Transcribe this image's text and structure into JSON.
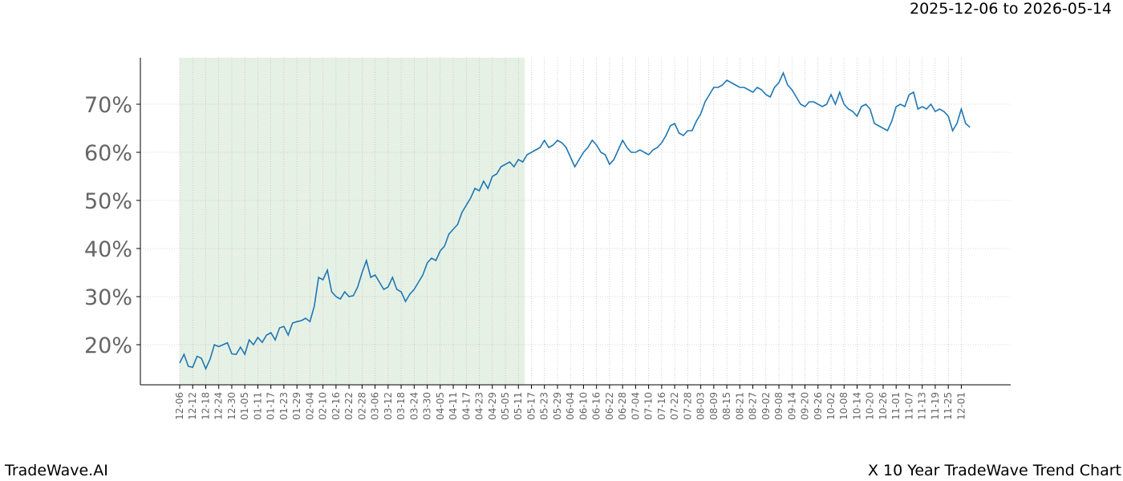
{
  "header": {
    "date_range": "2025-12-06 to 2026-05-14"
  },
  "footer": {
    "brand": "TradeWave.AI",
    "title": "X 10 Year TradeWave Trend Chart"
  },
  "colors": {
    "line": "#1f77b4",
    "highlight": "#e6f1e6",
    "axis": "#000000",
    "tick_text": "#666666",
    "grid": "#b0b0b0"
  },
  "chart_data": {
    "type": "line",
    "title": "",
    "xlabel": "",
    "ylabel": "",
    "y_unit": "%",
    "ylim": [
      12,
      80
    ],
    "xlim": [
      "2025-12-06",
      "2026-12-06"
    ],
    "grid": true,
    "highlight_range": [
      "2025-12-06",
      "2026-05-14"
    ],
    "x_tick_labels": [
      "12-06",
      "12-12",
      "12-18",
      "12-24",
      "12-30",
      "01-05",
      "01-11",
      "01-17",
      "01-23",
      "01-29",
      "02-04",
      "02-10",
      "02-16",
      "02-22",
      "02-28",
      "03-06",
      "03-12",
      "03-18",
      "03-24",
      "03-30",
      "04-05",
      "04-11",
      "04-17",
      "04-23",
      "04-29",
      "05-05",
      "05-11",
      "05-17",
      "05-23",
      "05-29",
      "06-04",
      "06-10",
      "06-16",
      "06-22",
      "06-28",
      "07-04",
      "07-10",
      "07-16",
      "07-22",
      "07-28",
      "08-03",
      "08-09",
      "08-15",
      "08-21",
      "08-27",
      "09-02",
      "09-08",
      "09-14",
      "09-20",
      "09-26",
      "10-02",
      "10-08",
      "10-14",
      "10-20",
      "10-26",
      "11-01",
      "11-07",
      "11-13",
      "11-19",
      "11-25",
      "12-01"
    ],
    "y_ticks": [
      20,
      30,
      40,
      50,
      60,
      70
    ],
    "y_tick_labels": [
      "20%",
      "30%",
      "40%",
      "50%",
      "60%",
      "70%"
    ],
    "series": [
      {
        "x": [
          "2025-12-06",
          "2025-12-08",
          "2025-12-10",
          "2025-12-12",
          "2025-12-14",
          "2025-12-16",
          "2025-12-18",
          "2025-12-20",
          "2025-12-22",
          "2025-12-24",
          "2025-12-26",
          "2025-12-28",
          "2025-12-30",
          "2026-01-01",
          "2026-01-03",
          "2026-01-05",
          "2026-01-07",
          "2026-01-09",
          "2026-01-11",
          "2026-01-13",
          "2026-01-15",
          "2026-01-17",
          "2026-01-19",
          "2026-01-21",
          "2026-01-23",
          "2026-01-25",
          "2026-01-27",
          "2026-01-29",
          "2026-01-31",
          "2026-02-02",
          "2026-02-04",
          "2026-02-06",
          "2026-02-08",
          "2026-02-10",
          "2026-02-12",
          "2026-02-14",
          "2026-02-16",
          "2026-02-18",
          "2026-02-20",
          "2026-02-22",
          "2026-02-24",
          "2026-02-26",
          "2026-02-28",
          "2026-03-02",
          "2026-03-04",
          "2026-03-06",
          "2026-03-08",
          "2026-03-10",
          "2026-03-12",
          "2026-03-14",
          "2026-03-16",
          "2026-03-18",
          "2026-03-20",
          "2026-03-22",
          "2026-03-24",
          "2026-03-26",
          "2026-03-28",
          "2026-03-30",
          "2026-04-01",
          "2026-04-03",
          "2026-04-05",
          "2026-04-07",
          "2026-04-09",
          "2026-04-11",
          "2026-04-13",
          "2026-04-15",
          "2026-04-17",
          "2026-04-19",
          "2026-04-21",
          "2026-04-23",
          "2026-04-25",
          "2026-04-27",
          "2026-04-29",
          "2026-05-01",
          "2026-05-03",
          "2026-05-05",
          "2026-05-07",
          "2026-05-09",
          "2026-05-11",
          "2026-05-13",
          "2026-05-15",
          "2026-05-17",
          "2026-05-19",
          "2026-05-21",
          "2026-05-23",
          "2026-05-25",
          "2026-05-27",
          "2026-05-29",
          "2026-05-31",
          "2026-06-02",
          "2026-06-04",
          "2026-06-06",
          "2026-06-08",
          "2026-06-10",
          "2026-06-12",
          "2026-06-14",
          "2026-06-16",
          "2026-06-18",
          "2026-06-20",
          "2026-06-22",
          "2026-06-24",
          "2026-06-26",
          "2026-06-28",
          "2026-06-30",
          "2026-07-02",
          "2026-07-04",
          "2026-07-06",
          "2026-07-08",
          "2026-07-10",
          "2026-07-12",
          "2026-07-14",
          "2026-07-16",
          "2026-07-18",
          "2026-07-20",
          "2026-07-22",
          "2026-07-24",
          "2026-07-26",
          "2026-07-28",
          "2026-07-30",
          "2026-08-01",
          "2026-08-03",
          "2026-08-05",
          "2026-08-07",
          "2026-08-09",
          "2026-08-11",
          "2026-08-13",
          "2026-08-15",
          "2026-08-17",
          "2026-08-19",
          "2026-08-21",
          "2026-08-23",
          "2026-08-25",
          "2026-08-27",
          "2026-08-29",
          "2026-08-31",
          "2026-09-02",
          "2026-09-04",
          "2026-09-06",
          "2026-09-08",
          "2026-09-10",
          "2026-09-12",
          "2026-09-14",
          "2026-09-16",
          "2026-09-18",
          "2026-09-20",
          "2026-09-22",
          "2026-09-24",
          "2026-09-26",
          "2026-09-28",
          "2026-09-30",
          "2026-10-02",
          "2026-10-04",
          "2026-10-06",
          "2026-10-08",
          "2026-10-10",
          "2026-10-12",
          "2026-10-14",
          "2026-10-16",
          "2026-10-18",
          "2026-10-20",
          "2026-10-22",
          "2026-10-24",
          "2026-10-26",
          "2026-10-28",
          "2026-10-30",
          "2026-11-01",
          "2026-11-03",
          "2026-11-05",
          "2026-11-07",
          "2026-11-09",
          "2026-11-11",
          "2026-11-13",
          "2026-11-15",
          "2026-11-17",
          "2026-11-19",
          "2026-11-21",
          "2026-11-23",
          "2026-11-25",
          "2026-11-27",
          "2026-11-29",
          "2026-12-01",
          "2026-12-03",
          "2026-12-05"
        ],
        "values": [
          16.2,
          18.0,
          15.5,
          15.3,
          17.6,
          17.2,
          15.0,
          17.0,
          20.0,
          19.6,
          20.0,
          20.4,
          18.1,
          18.0,
          19.5,
          18.0,
          21.0,
          20.0,
          21.5,
          20.5,
          22.0,
          22.5,
          21.0,
          23.5,
          23.8,
          22.0,
          24.5,
          24.8,
          25.0,
          25.5,
          24.8,
          28.0,
          34.0,
          33.5,
          35.5,
          31.0,
          30.0,
          29.5,
          31.0,
          30.0,
          30.2,
          32.0,
          35.0,
          37.5,
          34.0,
          34.5,
          33.0,
          31.5,
          32.0,
          34.0,
          31.5,
          31.0,
          29.0,
          30.5,
          31.5,
          33.0,
          34.5,
          37.0,
          38.0,
          37.5,
          39.5,
          40.5,
          43.0,
          44.0,
          45.0,
          47.5,
          49.0,
          50.5,
          52.5,
          52.0,
          54.0,
          52.5,
          55.0,
          55.5,
          57.0,
          57.5,
          58.0,
          57.0,
          58.5,
          58.0,
          59.5,
          60.0,
          60.5,
          61.0,
          62.5,
          61.0,
          61.5,
          62.5,
          62.0,
          61.0,
          59.0,
          57.0,
          58.5,
          60.0,
          61.0,
          62.5,
          61.5,
          60.0,
          59.5,
          57.5,
          58.5,
          60.5,
          62.5,
          61.0,
          60.0,
          60.0,
          60.5,
          60.0,
          59.5,
          60.5,
          61.0,
          62.0,
          63.5,
          65.5,
          66.0,
          64.0,
          63.5,
          64.5,
          64.5,
          66.5,
          68.0,
          70.5,
          72.0,
          73.5,
          73.5,
          74.0,
          75.0,
          74.5,
          74.0,
          73.5,
          73.5,
          73.0,
          72.5,
          73.5,
          73.0,
          72.0,
          71.5,
          73.5,
          74.5,
          76.5,
          74.0,
          73.0,
          71.5,
          70.0,
          69.5,
          70.5,
          70.5,
          70.0,
          69.5,
          70.0,
          72.0,
          70.0,
          72.5,
          70.0,
          69.0,
          68.5,
          67.5,
          69.5,
          70.0,
          69.0,
          66.0,
          65.5,
          65.0,
          64.5,
          66.5,
          69.5,
          70.0,
          69.5,
          72.0,
          72.5,
          69.0,
          69.5,
          69.0,
          70.0,
          68.5,
          69.0,
          68.5,
          67.5,
          64.5,
          66.0,
          69.0,
          66.0,
          65.2
        ]
      }
    ]
  }
}
